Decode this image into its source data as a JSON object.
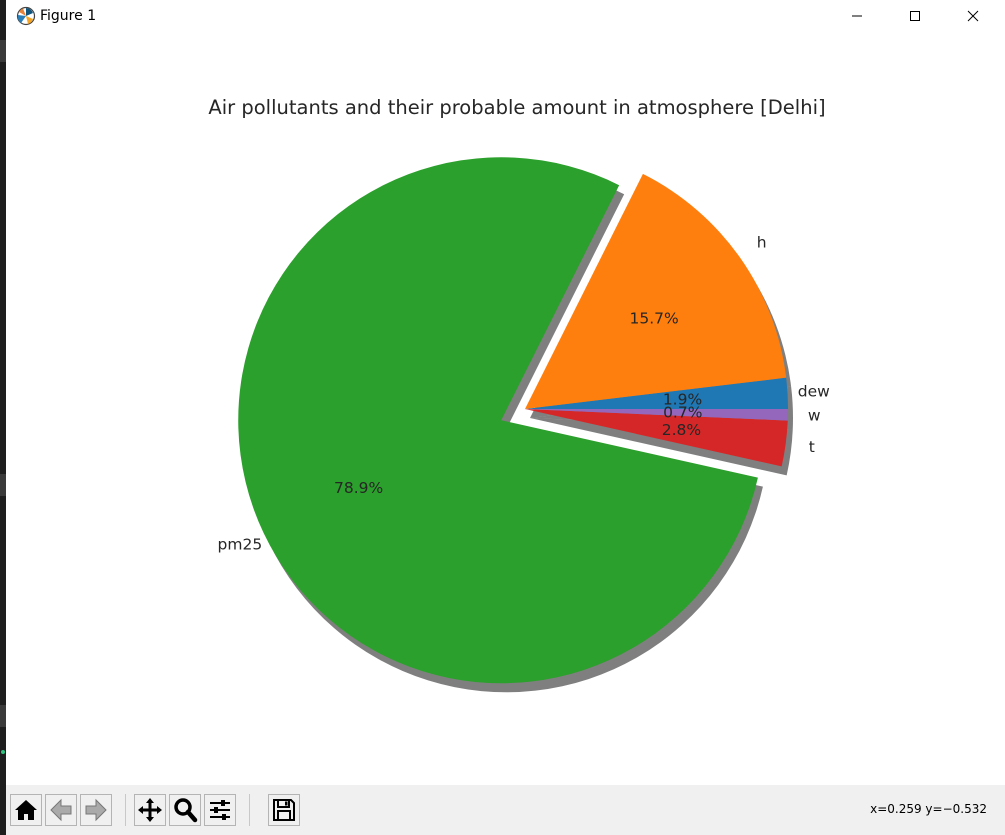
{
  "window": {
    "title": "Figure 1",
    "controls": {
      "minimize": "minimize-icon",
      "maximize": "maximize-icon",
      "close": "close-icon"
    }
  },
  "toolbar": {
    "buttons": [
      {
        "name": "home-button",
        "icon": "home-icon"
      },
      {
        "name": "back-button",
        "icon": "back-arrow-icon"
      },
      {
        "name": "forward-button",
        "icon": "forward-arrow-icon"
      },
      {
        "name": "pan-button",
        "icon": "move-icon"
      },
      {
        "name": "zoom-button",
        "icon": "magnifier-icon"
      },
      {
        "name": "configure-subplots-button",
        "icon": "sliders-icon"
      },
      {
        "name": "save-button",
        "icon": "floppy-disk-icon"
      }
    ],
    "coordinates": "x=0.259 y=−0.532"
  },
  "chart_data": {
    "type": "pie",
    "title": "Air pollutants and their probable amount in atmosphere [Delhi]",
    "start_angle_deg": 0,
    "shadow": true,
    "slices": [
      {
        "label": "dew",
        "percent": 1.9,
        "pct_label": "1.9%",
        "color": "#1f77b4",
        "explode": 0
      },
      {
        "label": "h",
        "percent": 15.7,
        "pct_label": "15.7%",
        "color": "#ff7f0e",
        "explode": 0
      },
      {
        "label": "pm25",
        "percent": 78.9,
        "pct_label": "78.9%",
        "color": "#2ca02c",
        "explode": 0.1
      },
      {
        "label": "t",
        "percent": 2.8,
        "pct_label": "2.8%",
        "color": "#d62728",
        "explode": 0
      },
      {
        "label": "w",
        "percent": 0.7,
        "pct_label": "0.7%",
        "color": "#9467bd",
        "explode": 0
      }
    ]
  }
}
